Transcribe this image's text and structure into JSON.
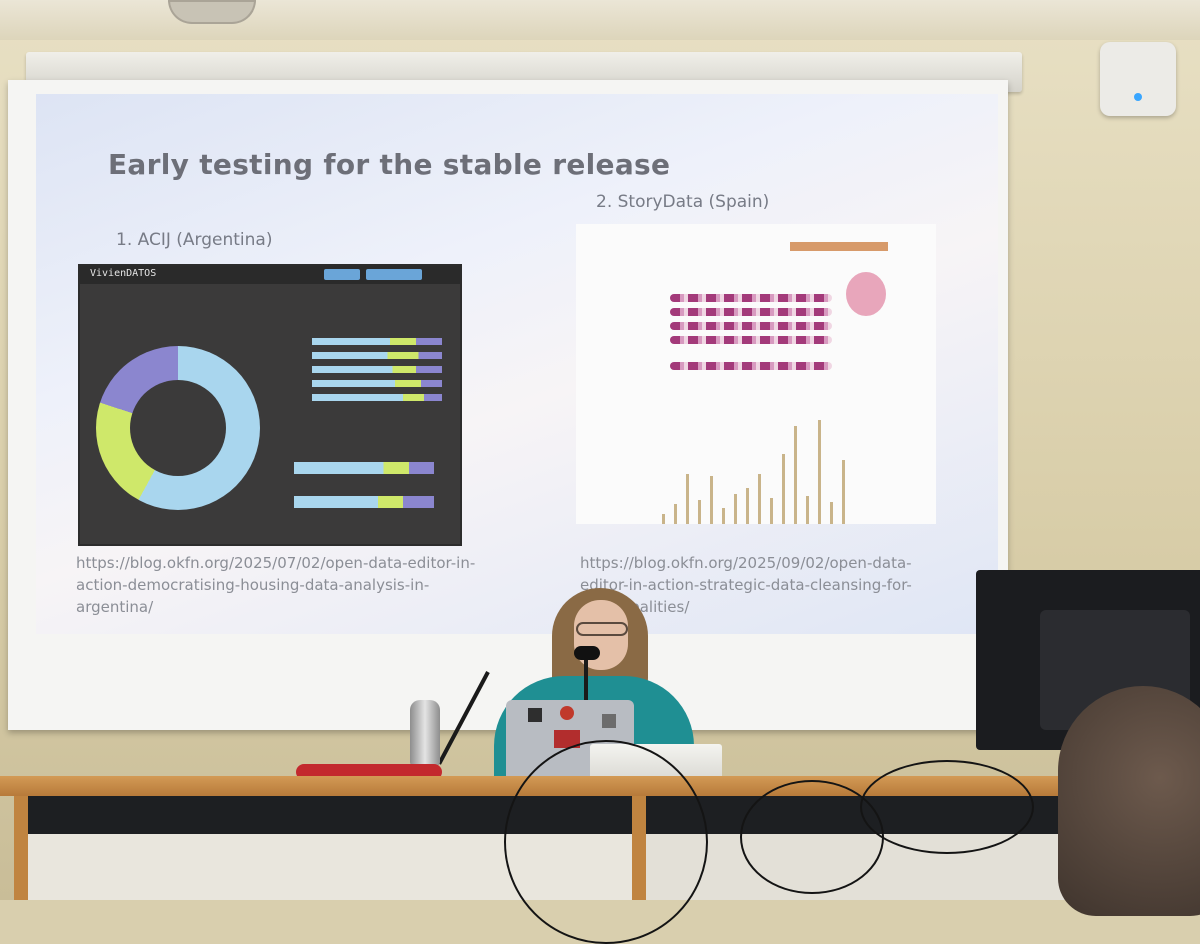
{
  "slide": {
    "title": "Early testing for the stable release",
    "left_label": "1.    ACIJ (Argentina)",
    "right_label": "2. StoryData (Spain)",
    "left_url": "https://blog.okfn.org/2025/07/02/open-data-editor-in-action-democratising-housing-data-analysis-in-argentina/",
    "right_url": "https://blog.okfn.org/2025/09/02/open-data-editor-in-action-strategic-data-cleansing-for-municipalities/",
    "left_brand": "VivienDATOS"
  },
  "colors": {
    "donut_blue": "#a9d6ee",
    "donut_green": "#cfe86a",
    "donut_purple": "#8b86cf",
    "bar_gold": "#c9b48a",
    "presenter_shirt": "#1f8f93"
  }
}
